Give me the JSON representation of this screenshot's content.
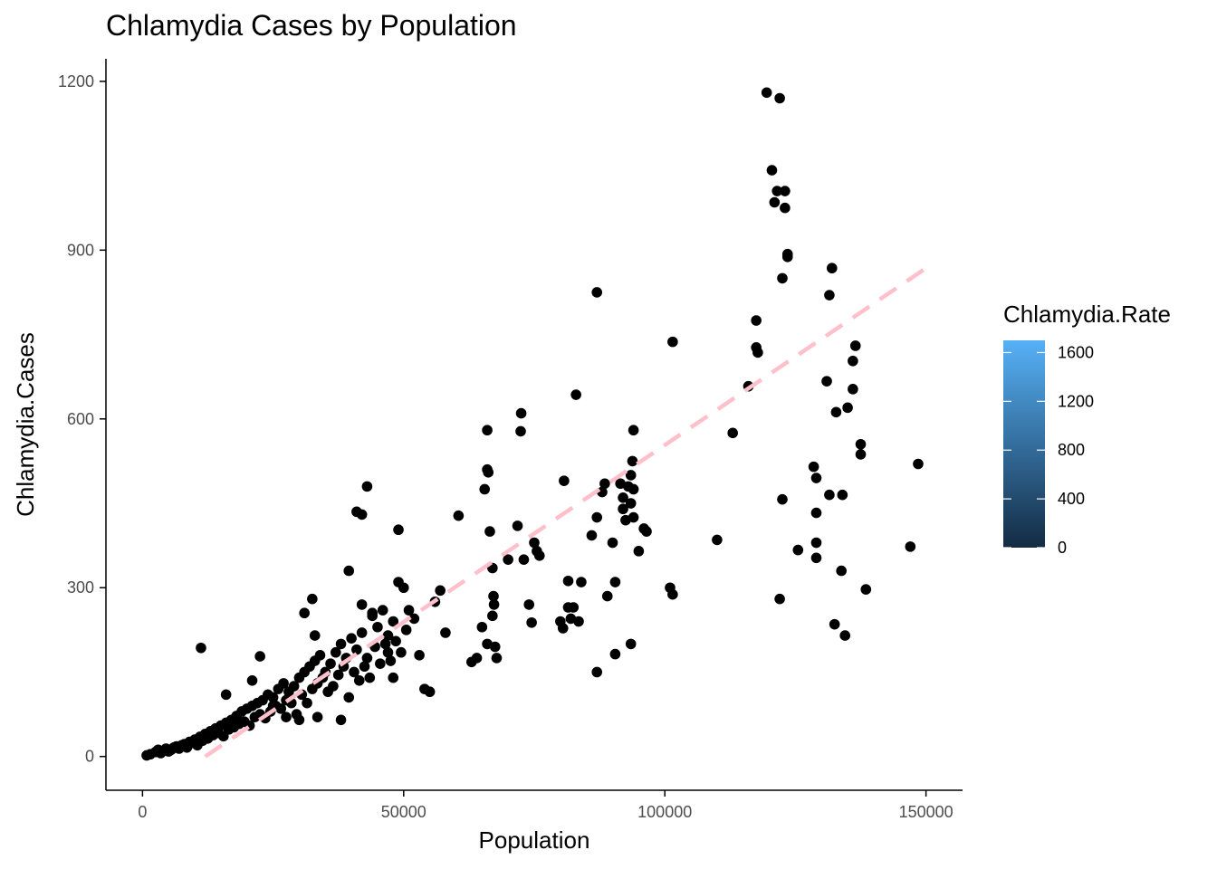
{
  "chart_data": {
    "type": "scatter",
    "title": "Chlamydia Cases by Population",
    "xlabel": "Population",
    "ylabel": "Chlamydia.Cases",
    "xlim": [
      -7000,
      157000
    ],
    "ylim": [
      -60,
      1240
    ],
    "x_ticks": [
      0,
      50000,
      100000,
      150000
    ],
    "x_tick_labels": [
      "0",
      "50000",
      "100000",
      "150000"
    ],
    "y_ticks": [
      0,
      300,
      600,
      900,
      1200
    ],
    "y_tick_labels": [
      "0",
      "300",
      "600",
      "900",
      "1200"
    ],
    "grid": false,
    "point_color": "#000000",
    "trend_line": {
      "style": "dashed",
      "color": "#FFC0CB",
      "points": [
        [
          12000,
          0
        ],
        [
          150000,
          868
        ]
      ]
    },
    "legend": {
      "title": "Chlamydia.Rate",
      "placement": "right",
      "type": "colorbar",
      "range": [
        0,
        1700
      ],
      "ticks": [
        0,
        400,
        800,
        1200,
        1600
      ],
      "tick_labels": [
        "0",
        "400",
        "800",
        "1200",
        "1600"
      ],
      "color_low": "#132B43",
      "color_high": "#56B1F7"
    },
    "points": [
      [
        800,
        2
      ],
      [
        1500,
        4
      ],
      [
        2500,
        8
      ],
      [
        3000,
        12
      ],
      [
        3500,
        6
      ],
      [
        4000,
        10
      ],
      [
        4500,
        14
      ],
      [
        5000,
        9
      ],
      [
        5500,
        12
      ],
      [
        6000,
        16
      ],
      [
        6500,
        18
      ],
      [
        7000,
        14
      ],
      [
        7500,
        20
      ],
      [
        8000,
        22
      ],
      [
        8500,
        16
      ],
      [
        9000,
        26
      ],
      [
        9500,
        24
      ],
      [
        10000,
        30
      ],
      [
        10500,
        20
      ],
      [
        11000,
        35
      ],
      [
        11500,
        28
      ],
      [
        12000,
        40
      ],
      [
        12500,
        32
      ],
      [
        13000,
        45
      ],
      [
        13500,
        38
      ],
      [
        14000,
        50
      ],
      [
        14500,
        42
      ],
      [
        15000,
        55
      ],
      [
        15500,
        36
      ],
      [
        16000,
        60
      ],
      [
        16500,
        48
      ],
      [
        17000,
        65
      ],
      [
        17500,
        52
      ],
      [
        18000,
        72
      ],
      [
        18500,
        58
      ],
      [
        19000,
        80
      ],
      [
        19500,
        62
      ],
      [
        20000,
        85
      ],
      [
        20500,
        55
      ],
      [
        21000,
        90
      ],
      [
        21500,
        70
      ],
      [
        22000,
        95
      ],
      [
        22500,
        75
      ],
      [
        23000,
        100
      ],
      [
        23500,
        68
      ],
      [
        24000,
        110
      ],
      [
        24500,
        80
      ],
      [
        25000,
        105
      ],
      [
        25500,
        90
      ],
      [
        26000,
        120
      ],
      [
        26500,
        85
      ],
      [
        27000,
        130
      ],
      [
        27500,
        100
      ],
      [
        28000,
        115
      ],
      [
        28500,
        95
      ],
      [
        29000,
        125
      ],
      [
        29500,
        75
      ],
      [
        30000,
        140
      ],
      [
        30500,
        110
      ],
      [
        31000,
        150
      ],
      [
        31500,
        95
      ],
      [
        32000,
        160
      ],
      [
        32500,
        120
      ],
      [
        33000,
        170
      ],
      [
        33500,
        130
      ],
      [
        34000,
        180
      ],
      [
        34500,
        140
      ],
      [
        35000,
        150
      ],
      [
        35500,
        115
      ],
      [
        36000,
        165
      ],
      [
        36500,
        125
      ],
      [
        37000,
        185
      ],
      [
        37500,
        145
      ],
      [
        38000,
        200
      ],
      [
        38500,
        160
      ],
      [
        39000,
        175
      ],
      [
        39500,
        105
      ],
      [
        40000,
        210
      ],
      [
        40500,
        150
      ],
      [
        41000,
        190
      ],
      [
        41500,
        135
      ],
      [
        42000,
        220
      ],
      [
        42500,
        160
      ],
      [
        43000,
        175
      ],
      [
        43500,
        140
      ],
      [
        44000,
        250
      ],
      [
        44500,
        195
      ],
      [
        45000,
        230
      ],
      [
        45500,
        165
      ],
      [
        46000,
        260
      ],
      [
        46500,
        200
      ],
      [
        47000,
        215
      ],
      [
        47500,
        170
      ],
      [
        48000,
        240
      ],
      [
        48500,
        205
      ],
      [
        49000,
        310
      ],
      [
        49500,
        185
      ],
      [
        50000,
        300
      ],
      [
        50500,
        225
      ],
      [
        51000,
        260
      ],
      [
        52000,
        245
      ],
      [
        53000,
        180
      ],
      [
        54000,
        120
      ],
      [
        55000,
        115
      ],
      [
        56000,
        275
      ],
      [
        57000,
        295
      ],
      [
        58000,
        220
      ],
      [
        11200,
        193
      ],
      [
        22500,
        178
      ],
      [
        31000,
        255
      ],
      [
        32500,
        280
      ],
      [
        33000,
        215
      ],
      [
        39500,
        330
      ],
      [
        41000,
        435
      ],
      [
        42000,
        430
      ],
      [
        43000,
        480
      ],
      [
        49000,
        403
      ],
      [
        47000,
        185
      ],
      [
        48000,
        140
      ],
      [
        38000,
        65
      ],
      [
        42000,
        270
      ],
      [
        44000,
        255
      ],
      [
        33500,
        70
      ],
      [
        27500,
        70
      ],
      [
        30000,
        65
      ],
      [
        16000,
        110
      ],
      [
        21000,
        135
      ],
      [
        25000,
        90
      ],
      [
        60500,
        428
      ],
      [
        63000,
        168
      ],
      [
        64000,
        175
      ],
      [
        65000,
        230
      ],
      [
        65500,
        475
      ],
      [
        66000,
        510
      ],
      [
        66200,
        505
      ],
      [
        66000,
        580
      ],
      [
        66500,
        400
      ],
      [
        67000,
        335
      ],
      [
        67200,
        285
      ],
      [
        67000,
        250
      ],
      [
        67300,
        270
      ],
      [
        67500,
        195
      ],
      [
        67800,
        175
      ],
      [
        66000,
        200
      ],
      [
        70000,
        350
      ],
      [
        71800,
        410
      ],
      [
        72400,
        578
      ],
      [
        72500,
        610
      ],
      [
        73000,
        350
      ],
      [
        74000,
        270
      ],
      [
        74500,
        238
      ],
      [
        75000,
        380
      ],
      [
        75500,
        365
      ],
      [
        76000,
        357
      ],
      [
        80000,
        240
      ],
      [
        80500,
        228
      ],
      [
        80700,
        490
      ],
      [
        81500,
        265
      ],
      [
        81500,
        312
      ],
      [
        82000,
        245
      ],
      [
        82500,
        265
      ],
      [
        83000,
        643
      ],
      [
        83500,
        240
      ],
      [
        84000,
        310
      ],
      [
        86000,
        393
      ],
      [
        87000,
        825
      ],
      [
        87000,
        150
      ],
      [
        87000,
        425
      ],
      [
        88000,
        470
      ],
      [
        88500,
        485
      ],
      [
        89000,
        285
      ],
      [
        90000,
        380
      ],
      [
        90500,
        310
      ],
      [
        90500,
        182
      ],
      [
        91500,
        485
      ],
      [
        92000,
        440
      ],
      [
        92000,
        460
      ],
      [
        92500,
        420
      ],
      [
        93000,
        480
      ],
      [
        93500,
        450
      ],
      [
        93500,
        500
      ],
      [
        93800,
        525
      ],
      [
        94000,
        425
      ],
      [
        94000,
        475
      ],
      [
        94000,
        580
      ],
      [
        93500,
        200
      ],
      [
        95000,
        365
      ],
      [
        96000,
        405
      ],
      [
        96500,
        400
      ],
      [
        101000,
        300
      ],
      [
        101500,
        288
      ],
      [
        101500,
        737
      ],
      [
        110000,
        385
      ],
      [
        113000,
        575
      ],
      [
        116000,
        658
      ],
      [
        117500,
        775
      ],
      [
        117500,
        727
      ],
      [
        117800,
        718
      ],
      [
        119500,
        1180
      ],
      [
        120500,
        1042
      ],
      [
        121000,
        985
      ],
      [
        121500,
        1005
      ],
      [
        122000,
        1170
      ],
      [
        122500,
        457
      ],
      [
        122500,
        850
      ],
      [
        123000,
        975
      ],
      [
        123000,
        1005
      ],
      [
        123500,
        893
      ],
      [
        123500,
        888
      ],
      [
        122000,
        280
      ],
      [
        125500,
        367
      ],
      [
        128500,
        515
      ],
      [
        129000,
        495
      ],
      [
        129000,
        433
      ],
      [
        129000,
        380
      ],
      [
        129000,
        353
      ],
      [
        131000,
        667
      ],
      [
        131500,
        465
      ],
      [
        131500,
        820
      ],
      [
        132000,
        868
      ],
      [
        132500,
        235
      ],
      [
        132800,
        612
      ],
      [
        133800,
        330
      ],
      [
        134000,
        465
      ],
      [
        134500,
        215
      ],
      [
        135000,
        620
      ],
      [
        136000,
        653
      ],
      [
        136000,
        703
      ],
      [
        136500,
        730
      ],
      [
        137500,
        555
      ],
      [
        137500,
        537
      ],
      [
        138500,
        297
      ],
      [
        147000,
        373
      ],
      [
        148500,
        520
      ]
    ]
  }
}
